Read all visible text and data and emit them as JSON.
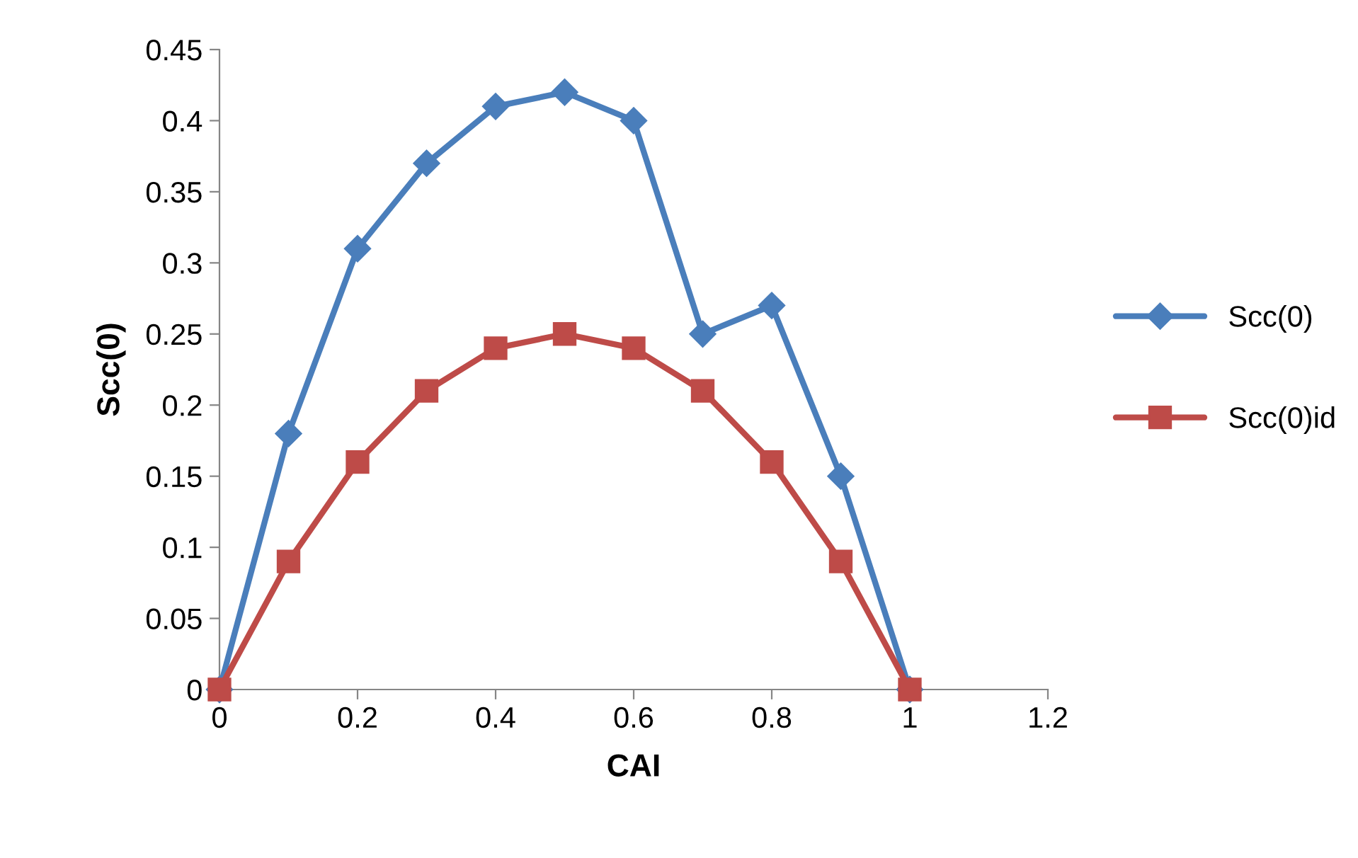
{
  "chart_data": {
    "type": "line",
    "xlabel": "CAI",
    "ylabel": "Scc(0)",
    "x": [
      0,
      0.1,
      0.2,
      0.3,
      0.4,
      0.5,
      0.6,
      0.7,
      0.8,
      0.9,
      1
    ],
    "series": [
      {
        "name": "Scc(0)",
        "color": "#4a7ebb",
        "marker": "diamond",
        "values": [
          0,
          0.18,
          0.31,
          0.37,
          0.41,
          0.42,
          0.4,
          0.25,
          0.27,
          0.15,
          0
        ]
      },
      {
        "name": "Scc(0)id",
        "color": "#be4b48",
        "marker": "square",
        "values": [
          0,
          0.09,
          0.16,
          0.21,
          0.24,
          0.25,
          0.24,
          0.21,
          0.16,
          0.09,
          0
        ]
      }
    ],
    "xlim": [
      0,
      1.2
    ],
    "xticks": [
      0,
      0.2,
      0.4,
      0.6,
      0.8,
      1,
      1.2
    ],
    "ylim": [
      0,
      0.45
    ],
    "yticks": [
      0,
      0.05,
      0.1,
      0.15,
      0.2,
      0.25,
      0.3,
      0.35,
      0.4,
      0.45
    ],
    "grid": false,
    "legend": "right",
    "line_style": "solid"
  }
}
